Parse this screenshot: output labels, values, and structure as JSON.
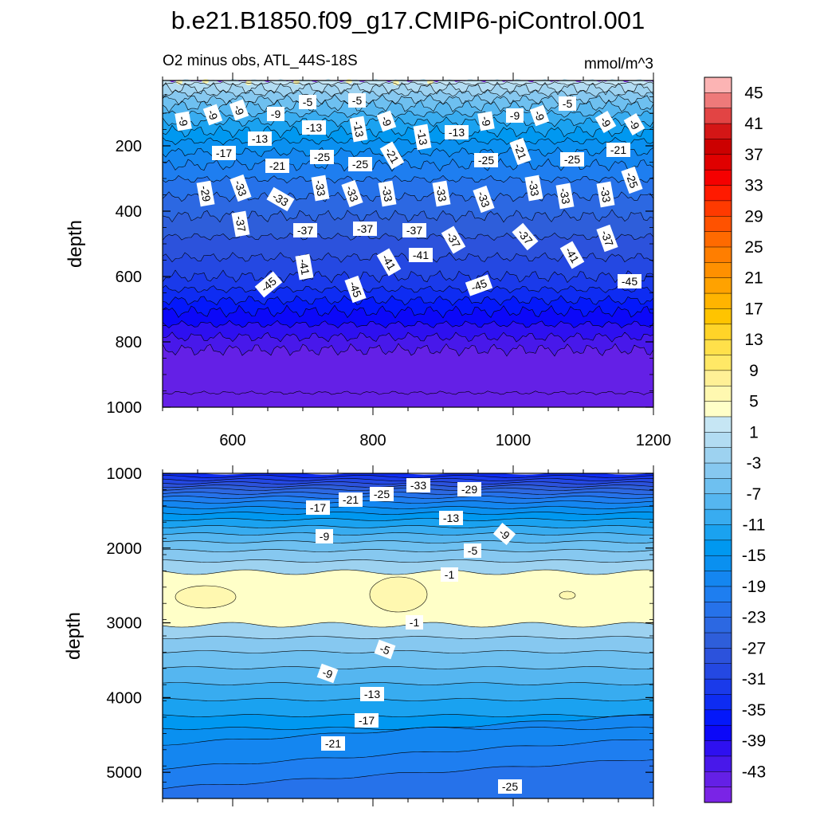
{
  "figure_title": "b.e21.B1850.f09_g17.CMIP6-piControl.001",
  "colorbar": {
    "labels": [
      "45",
      "41",
      "37",
      "33",
      "29",
      "25",
      "21",
      "17",
      "13",
      "9",
      "5",
      "1",
      "-3",
      "-7",
      "-11",
      "-15",
      "-19",
      "-23",
      "-27",
      "-31",
      "-35",
      "-39",
      "-43"
    ],
    "colors": [
      "#fcb4b4",
      "#ee7a7a",
      "#e24444",
      "#d41616",
      "#cc0000",
      "#e00000",
      "#f50000",
      "#ff1a00",
      "#ff3a00",
      "#ff5200",
      "#ff6a00",
      "#ff7e00",
      "#ff9000",
      "#ffa200",
      "#ffb400",
      "#ffc400",
      "#ffd428",
      "#ffe04a",
      "#ffe866",
      "#fff096",
      "#fff8b0",
      "#ffffc8",
      "#c6e6f4",
      "#b2dcf2",
      "#9dd2f0",
      "#86c8f0",
      "#6ec0f0",
      "#55b6f0",
      "#38acf0",
      "#1aa2f0",
      "#0098f0",
      "#0a90f0",
      "#1486f0",
      "#1e7ef0",
      "#2672ea",
      "#2c68e2",
      "#2e5eda",
      "#2c52dc",
      "#2448e2",
      "#1a3aea",
      "#0e2cf2",
      "#0418fa",
      "#0c08f8",
      "#2e10f0",
      "#4818ea",
      "#6420e6",
      "#7a24e6"
    ]
  },
  "chart_data": [
    {
      "type": "heatmap",
      "subtitle_left": "O2 minus obs, ATL_44S-18S",
      "subtitle_right": "mmol/m^3",
      "ylabel": "depth",
      "xlabel": "",
      "xlim": [
        500,
        1200
      ],
      "ylim": [
        1000,
        0
      ],
      "xticks": [
        "600",
        "800",
        "1000",
        "1200"
      ],
      "yticks": [
        "200",
        "400",
        "600",
        "800",
        "1000"
      ],
      "contour_labels": [
        "-5",
        "-5",
        "-5",
        "-9",
        "-9",
        "-9",
        "-9",
        "-9",
        "-9",
        "-9",
        "-9",
        "-9",
        "-9",
        "-13",
        "-13",
        "-13",
        "-13",
        "-13",
        "-17",
        "-21",
        "-21",
        "-21",
        "-21",
        "-25",
        "-25",
        "-25",
        "-25",
        "-25",
        "-29",
        "-33",
        "-33",
        "-33",
        "-33",
        "-33",
        "-33",
        "-33",
        "-33",
        "-33",
        "-33",
        "-37",
        "-37",
        "-37",
        "-37",
        "-37",
        "-37",
        "-37",
        "-41",
        "-41",
        "-41",
        "-41",
        "-45",
        "-45",
        "-45",
        "-45"
      ]
    },
    {
      "type": "heatmap",
      "subtitle_left": "",
      "subtitle_right": "",
      "ylabel": "depth",
      "xlabel": "",
      "xlim": [
        500,
        1200
      ],
      "ylim": [
        5350,
        1000
      ],
      "xticks": [],
      "yticks": [
        "1000",
        "2000",
        "3000",
        "4000",
        "5000"
      ],
      "contour_labels": [
        "-33",
        "-29",
        "-25",
        "-21",
        "-17",
        "-13",
        "-9",
        "-9",
        "-5",
        "-1",
        "-1",
        "-5",
        "-9",
        "-13",
        "-17",
        "-21",
        "-25"
      ]
    }
  ]
}
